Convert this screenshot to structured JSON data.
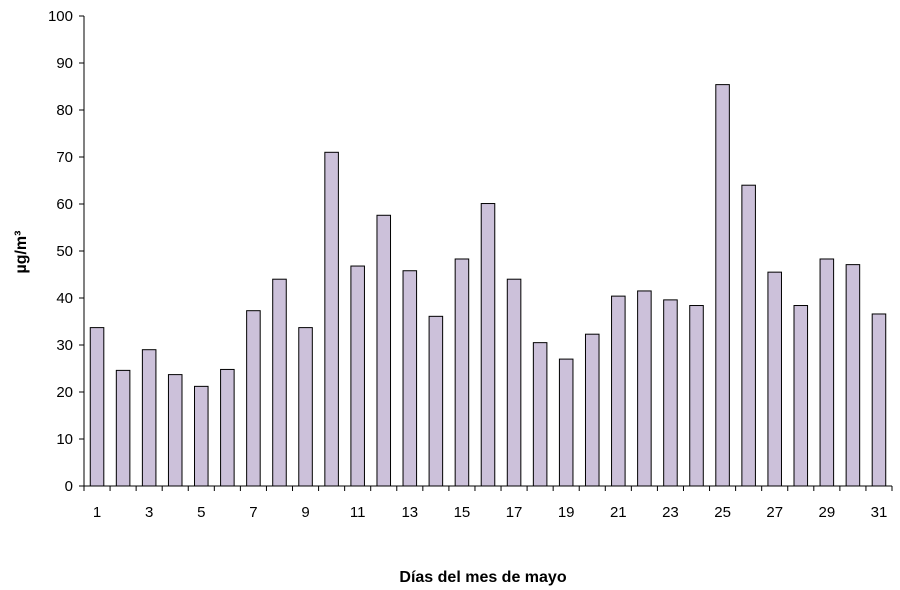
{
  "chart_data": {
    "type": "bar",
    "title": "",
    "xlabel": "Días del mes de mayo",
    "ylabel": "µg/m³",
    "ylim": [
      0,
      100
    ],
    "y_ticks": [
      0,
      10,
      20,
      30,
      40,
      50,
      60,
      70,
      80,
      90,
      100
    ],
    "grid": false,
    "legend": "none",
    "bar_color": "#ccc1da",
    "bar_edge_color": "#000000",
    "categories": [
      1,
      2,
      3,
      4,
      5,
      6,
      7,
      8,
      9,
      10,
      11,
      12,
      13,
      14,
      15,
      16,
      17,
      18,
      19,
      20,
      21,
      22,
      23,
      24,
      25,
      26,
      27,
      28,
      29,
      30,
      31
    ],
    "x_tick_labels": [
      "1",
      "",
      "3",
      "",
      "5",
      "",
      "7",
      "",
      "9",
      "",
      "11",
      "",
      "13",
      "",
      "15",
      "",
      "17",
      "",
      "19",
      "",
      "21",
      "",
      "23",
      "",
      "25",
      "",
      "27",
      "",
      "29",
      "",
      "31"
    ],
    "values": [
      33.7,
      24.6,
      29.0,
      23.7,
      21.2,
      24.8,
      37.3,
      44.0,
      33.7,
      71.0,
      46.8,
      57.6,
      45.8,
      36.1,
      48.3,
      60.1,
      44.0,
      30.5,
      27.0,
      32.3,
      40.4,
      41.5,
      39.6,
      38.4,
      85.4,
      64.0,
      45.5,
      38.4,
      48.3,
      47.1,
      36.6
    ]
  }
}
